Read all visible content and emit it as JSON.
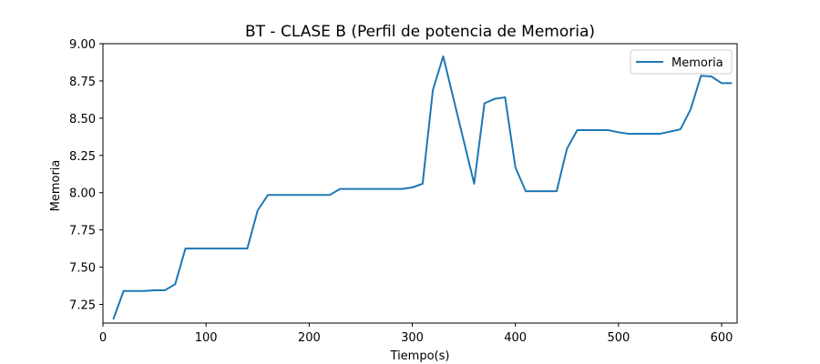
{
  "chart_data": {
    "type": "line",
    "title": "BT - CLASE B (Perfil de potencia de Memoria)",
    "xlabel": "Tiempo(s)",
    "ylabel": "Memoria",
    "xlim": [
      0,
      615
    ],
    "ylim": [
      7.125,
      9.0
    ],
    "xticks": [
      0,
      100,
      200,
      300,
      400,
      500,
      600
    ],
    "xtick_labels": [
      "0",
      "100",
      "200",
      "300",
      "400",
      "500",
      "600"
    ],
    "yticks": [
      7.25,
      7.5,
      7.75,
      8.0,
      8.25,
      8.5,
      8.75,
      9.0
    ],
    "ytick_labels": [
      "7.25",
      "7.50",
      "7.75",
      "8.00",
      "8.25",
      "8.50",
      "8.75",
      "9.00"
    ],
    "grid": false,
    "legend_position": "top-right",
    "series": [
      {
        "name": "Memoria",
        "color": "#1f77b4",
        "x": [
          10,
          20,
          30,
          40,
          50,
          60,
          70,
          80,
          90,
          100,
          110,
          120,
          130,
          140,
          150,
          160,
          170,
          180,
          190,
          200,
          210,
          220,
          230,
          240,
          250,
          260,
          270,
          280,
          290,
          300,
          310,
          320,
          330,
          340,
          350,
          360,
          370,
          380,
          390,
          400,
          410,
          420,
          430,
          440,
          450,
          460,
          470,
          480,
          490,
          500,
          510,
          520,
          530,
          540,
          550,
          560,
          570,
          580,
          590,
          600,
          610
        ],
        "y": [
          7.15,
          7.34,
          7.34,
          7.34,
          7.345,
          7.345,
          7.385,
          7.625,
          7.625,
          7.625,
          7.625,
          7.625,
          7.625,
          7.625,
          7.88,
          7.985,
          7.985,
          7.985,
          7.985,
          7.985,
          7.985,
          7.985,
          8.025,
          8.025,
          8.025,
          8.025,
          8.025,
          8.025,
          8.025,
          8.035,
          8.06,
          8.69,
          8.915,
          8.63,
          8.345,
          8.06,
          8.6,
          8.63,
          8.64,
          8.17,
          8.01,
          8.01,
          8.01,
          8.01,
          8.295,
          8.42,
          8.42,
          8.42,
          8.42,
          8.405,
          8.395,
          8.395,
          8.395,
          8.395,
          8.41,
          8.425,
          8.56,
          8.785,
          8.78,
          8.735,
          8.735
        ]
      }
    ]
  }
}
